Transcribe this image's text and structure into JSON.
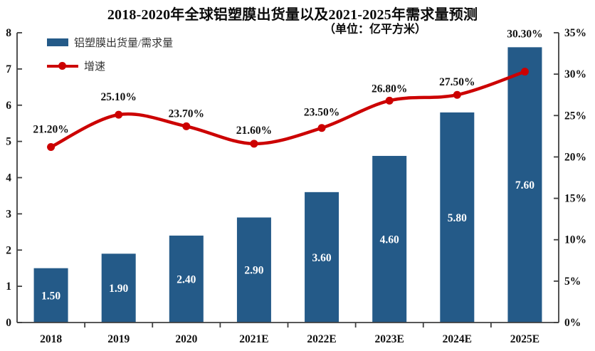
{
  "title": "2018-2020年全球铝塑膜出货量以及2021-2025年需求量预测",
  "subtitle": "（单位：亿平方米）",
  "legend": {
    "bars_label": "铝塑膜出货量/需求量",
    "line_label": "增速"
  },
  "colors": {
    "bar": "#245a88",
    "line": "#cc0000",
    "axis": "#3f3f3f",
    "text": "#111111",
    "bar_value_label": "#ffffff"
  },
  "chart_data": {
    "type": "bar",
    "subtype": "bar+line combo, dual axis",
    "title": "2018-2020年全球铝塑膜出货量以及2021-2025年需求量预测",
    "subtitle": "（单位：亿平方米）",
    "categories": [
      "2018",
      "2019",
      "2020",
      "2021E",
      "2022E",
      "2023E",
      "2024E",
      "2025E"
    ],
    "series": [
      {
        "name": "铝塑膜出货量/需求量",
        "type": "bar",
        "axis": "left",
        "values": [
          1.5,
          1.9,
          2.4,
          2.9,
          3.6,
          4.6,
          5.8,
          7.6
        ],
        "labels": [
          "1.50",
          "1.90",
          "2.40",
          "2.90",
          "3.60",
          "4.60",
          "5.80",
          "7.60"
        ]
      },
      {
        "name": "增速",
        "type": "line",
        "axis": "right",
        "values": [
          21.2,
          25.1,
          23.7,
          21.6,
          23.5,
          26.8,
          27.5,
          30.3
        ],
        "labels": [
          "21.20%",
          "25.10%",
          "23.70%",
          "21.60%",
          "23.50%",
          "26.80%",
          "27.50%",
          "30.30%"
        ]
      }
    ],
    "left_axis": {
      "min": 0,
      "max": 8,
      "step": 1,
      "ticks": [
        "0",
        "1",
        "2",
        "3",
        "4",
        "5",
        "6",
        "7",
        "8"
      ]
    },
    "right_axis": {
      "min": 0,
      "max": 35,
      "step": 5,
      "ticks": [
        "0%",
        "5%",
        "10%",
        "15%",
        "20%",
        "25%",
        "30%",
        "35%"
      ]
    },
    "legend_position": "top-left",
    "grid": false,
    "line_label_offsets": [
      20,
      20,
      13,
      14,
      17,
      12,
      13,
      48
    ]
  }
}
